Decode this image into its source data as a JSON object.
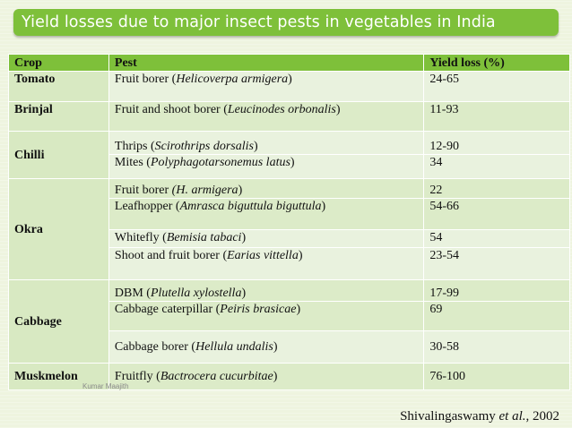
{
  "title": "Yield losses due to major insect pests in vegetables in India",
  "table": {
    "headers": [
      "Crop",
      "Pest",
      "Yield loss (%)"
    ],
    "rows": [
      {
        "crop": "Tomato",
        "pest_pre": "Fruit borer (",
        "pest_sci": "Helicoverpa armigera",
        "pest_post": ")",
        "loss": "24-65"
      },
      {
        "crop": "Brinjal",
        "pest_pre": "Fruit and shoot borer (",
        "pest_sci": "Leucinodes orbonalis",
        "pest_post": ")",
        "loss": "11-93"
      },
      {
        "crop": "Chilli",
        "pest_pre": "Thrips (",
        "pest_sci": "Scirothrips dorsalis",
        "pest_post": ")",
        "loss": "12-90"
      },
      {
        "crop": "",
        "pest_pre": "Mites (",
        "pest_sci": "Polyphagotarsonemus latus",
        "pest_post": ")",
        "loss": "34"
      },
      {
        "crop": "Okra",
        "pest_pre": "Fruit borer ",
        "pest_sci": "(H. armigera",
        "pest_post": ")",
        "loss": "22"
      },
      {
        "crop": "",
        "pest_pre": "Leafhopper (",
        "pest_sci": "Amrasca biguttula biguttula",
        "pest_post": ")",
        "loss": "54-66"
      },
      {
        "crop": "",
        "pest_pre": "Whitefly (",
        "pest_sci": "Bemisia tabaci",
        "pest_post": ")",
        "loss": "54"
      },
      {
        "crop": "",
        "pest_pre": "Shoot and fruit borer (",
        "pest_sci": "Earias vittella",
        "pest_post": ")",
        "loss": "23-54"
      },
      {
        "crop": "Cabbage",
        "pest_pre": "DBM (",
        "pest_sci": "Plutella xylostella",
        "pest_post": ")",
        "loss": "17-99"
      },
      {
        "crop": "",
        "pest_pre": "Cabbage caterpillar (",
        "pest_sci": "Peiris brasicae",
        "pest_post": ")",
        "loss": "69"
      },
      {
        "crop": "",
        "pest_pre": "Cabbage borer (",
        "pest_sci": "Hellula undalis",
        "pest_post": ")",
        "loss": "30-58"
      },
      {
        "crop": "Muskmelon",
        "pest_pre": "Fruitfly (",
        "pest_sci": "Bactrocera cucurbitae",
        "pest_post": ")",
        "loss": "76-100"
      }
    ]
  },
  "watermark": "Kumar Maajith",
  "citation": {
    "author": "Shivalingaswamy ",
    "etal": "et al.",
    "year": ", 2002"
  },
  "colors": {
    "title_bar": "#7ec03a",
    "header_row": "#7ec03a",
    "crop_col": "#d8e9c2",
    "cell": "#e9f2de"
  }
}
